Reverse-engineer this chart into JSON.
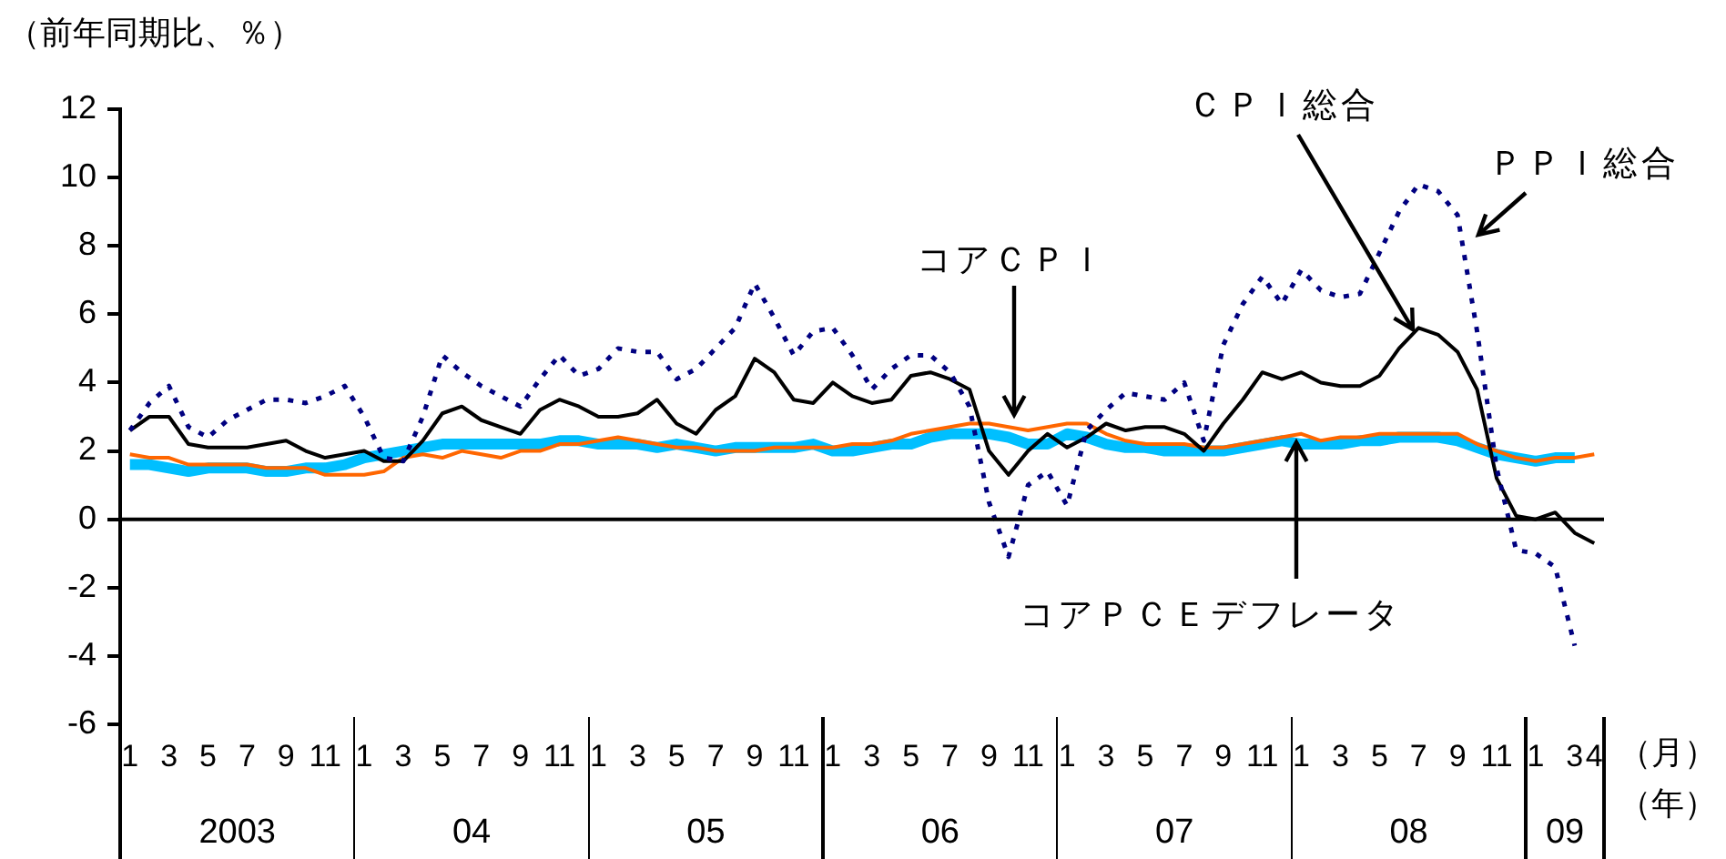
{
  "chart_data": {
    "type": "line",
    "ylabel": "（前年同期比、％）",
    "xlabel": "（月）",
    "categories": [
      "1",
      null,
      "3",
      null,
      "5",
      null,
      "7",
      null,
      "9",
      null,
      "11",
      null,
      "1",
      null,
      "3",
      null,
      "5",
      null,
      "7",
      null,
      "9",
      null,
      "11",
      null,
      "1",
      null,
      "3",
      null,
      "5",
      null,
      "7",
      null,
      "9",
      null,
      "11",
      null,
      "1",
      null,
      "3",
      null,
      "5",
      null,
      "7",
      null,
      "9",
      null,
      "11",
      null,
      "1",
      null,
      "3",
      null,
      "5",
      null,
      "7",
      null,
      "9",
      null,
      "11",
      null,
      "1",
      null,
      "3",
      null,
      "5",
      null,
      "7",
      null,
      "9",
      null,
      "11",
      null,
      "1",
      null,
      "3",
      "4"
    ],
    "annotations": [
      "（年）",
      "2003",
      "04",
      "05",
      "06",
      "07",
      "08",
      "09"
    ],
    "ylim": [
      -6,
      12
    ],
    "yticks": [
      -6,
      -4,
      -2,
      0,
      2,
      4,
      6,
      8,
      10,
      12
    ],
    "grid": false,
    "legend": false,
    "marker": "none",
    "ref_lines": [
      {
        "axis": "y",
        "value": 0,
        "color": "#000000"
      }
    ],
    "series": [
      {
        "name": "コアＰＣＥデフレータ",
        "color": "#00bfff",
        "line_style": "solid",
        "values": [
          1.6,
          1.6,
          1.5,
          1.4,
          1.5,
          1.5,
          1.5,
          1.4,
          1.4,
          1.5,
          1.5,
          1.6,
          1.8,
          1.9,
          2.0,
          2.1,
          2.2,
          2.2,
          2.2,
          2.2,
          2.2,
          2.2,
          2.3,
          2.3,
          2.2,
          2.2,
          2.2,
          2.1,
          2.2,
          2.1,
          2.0,
          2.1,
          2.1,
          2.1,
          2.1,
          2.2,
          2.0,
          2.0,
          2.1,
          2.2,
          2.2,
          2.4,
          2.5,
          2.5,
          2.5,
          2.4,
          2.2,
          2.2,
          2.5,
          2.4,
          2.2,
          2.1,
          2.1,
          2.0,
          2.0,
          2.0,
          2.0,
          2.1,
          2.2,
          2.3,
          2.2,
          2.2,
          2.2,
          2.3,
          2.3,
          2.4,
          2.4,
          2.4,
          2.3,
          2.1,
          1.9,
          1.8,
          1.7,
          1.8,
          1.8,
          null
        ]
      },
      {
        "name": "コアＣＰＩ",
        "color": "#ff6600",
        "line_style": "solid",
        "values": [
          1.9,
          1.8,
          1.8,
          1.6,
          1.6,
          1.6,
          1.6,
          1.5,
          1.5,
          1.5,
          1.3,
          1.3,
          1.3,
          1.4,
          1.8,
          1.9,
          1.8,
          2.0,
          1.9,
          1.8,
          2.0,
          2.0,
          2.2,
          2.2,
          2.3,
          2.4,
          2.3,
          2.2,
          2.1,
          2.1,
          2.0,
          2.0,
          2.0,
          2.1,
          2.1,
          2.1,
          2.1,
          2.2,
          2.2,
          2.3,
          2.5,
          2.6,
          2.7,
          2.8,
          2.8,
          2.7,
          2.6,
          2.7,
          2.8,
          2.8,
          2.5,
          2.3,
          2.2,
          2.2,
          2.2,
          2.1,
          2.1,
          2.2,
          2.3,
          2.4,
          2.5,
          2.3,
          2.4,
          2.4,
          2.5,
          2.5,
          2.5,
          2.5,
          2.5,
          2.2,
          2.0,
          1.8,
          1.7,
          1.8,
          1.8,
          1.9
        ]
      },
      {
        "name": "ＣＰＩ総合",
        "color": "#000000",
        "line_style": "solid",
        "values": [
          2.6,
          3.0,
          3.0,
          2.2,
          2.1,
          2.1,
          2.1,
          2.2,
          2.3,
          2.0,
          1.8,
          1.9,
          2.0,
          1.7,
          1.7,
          2.3,
          3.1,
          3.3,
          2.9,
          2.7,
          2.5,
          3.2,
          3.5,
          3.3,
          3.0,
          3.0,
          3.1,
          3.5,
          2.8,
          2.5,
          3.2,
          3.6,
          4.7,
          4.3,
          3.5,
          3.4,
          4.0,
          3.6,
          3.4,
          3.5,
          4.2,
          4.3,
          4.1,
          3.8,
          2.0,
          1.3,
          2.0,
          2.5,
          2.1,
          2.4,
          2.8,
          2.6,
          2.7,
          2.7,
          2.5,
          2.0,
          2.8,
          3.5,
          4.3,
          4.1,
          4.3,
          4.0,
          3.9,
          3.9,
          4.2,
          5.0,
          5.6,
          5.4,
          4.9,
          3.8,
          1.2,
          0.1,
          0.0,
          0.2,
          -0.4,
          -0.7
        ]
      },
      {
        "name": "ＰＰＩ総合",
        "color": "#000080",
        "line_style": "dotted",
        "values": [
          2.6,
          3.4,
          3.9,
          2.7,
          2.4,
          2.9,
          3.2,
          3.5,
          3.5,
          3.4,
          3.6,
          3.9,
          3.0,
          1.8,
          1.7,
          3.0,
          4.8,
          4.3,
          3.9,
          3.6,
          3.3,
          4.1,
          4.8,
          4.2,
          4.4,
          5.0,
          4.9,
          4.9,
          4.1,
          4.4,
          5.0,
          5.6,
          6.9,
          5.9,
          4.8,
          5.5,
          5.6,
          4.8,
          3.8,
          4.4,
          4.8,
          4.8,
          4.3,
          3.3,
          0.5,
          -1.1,
          1.0,
          1.4,
          0.4,
          2.6,
          3.2,
          3.7,
          3.6,
          3.5,
          4.0,
          2.3,
          5.1,
          6.3,
          7.1,
          6.3,
          7.3,
          6.7,
          6.5,
          6.6,
          7.8,
          9.0,
          9.8,
          9.6,
          8.9,
          5.5,
          1.5,
          -0.9,
          -1.0,
          -1.4,
          -3.7,
          null
        ]
      }
    ]
  }
}
